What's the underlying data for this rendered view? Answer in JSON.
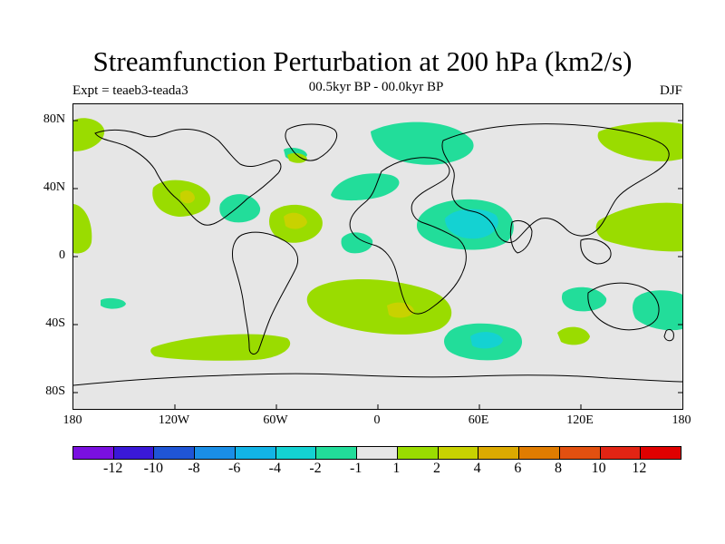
{
  "title": "Streamfunction Perturbation at 200 hPa (km2/s)",
  "left_subtitle": "Expt = teaeb3-teada3",
  "center_subtitle": "00.5kyr BP - 00.0kyr BP",
  "right_subtitle": "DJF",
  "lat_labels": [
    "80N",
    "40N",
    "0",
    "40S",
    "80S"
  ],
  "lon_labels": [
    "180",
    "120W",
    "60W",
    "0",
    "60E",
    "120E",
    "180"
  ],
  "colorbar": {
    "colors": [
      "#7a10e0",
      "#3a18d8",
      "#1f55d6",
      "#1a8ee6",
      "#12b4e6",
      "#14d2d2",
      "#22dd9a",
      "#e6e6e6",
      "#9adc00",
      "#c8d200",
      "#dcaa00",
      "#e07c00",
      "#e25010",
      "#e22414",
      "#e00000"
    ],
    "labels": [
      "-12",
      "-10",
      "-8",
      "-6",
      "-4",
      "-2",
      "-1",
      "1",
      "2",
      "4",
      "6",
      "8",
      "10",
      "12"
    ]
  },
  "colors": {
    "neg1": "#22dd9a",
    "neg2": "#14d2d2",
    "neg4": "#12b4e6",
    "pos1": "#9adc00",
    "pos2": "#c8d200",
    "pos4": "#dcaa00",
    "background": "#e6e6e6"
  }
}
